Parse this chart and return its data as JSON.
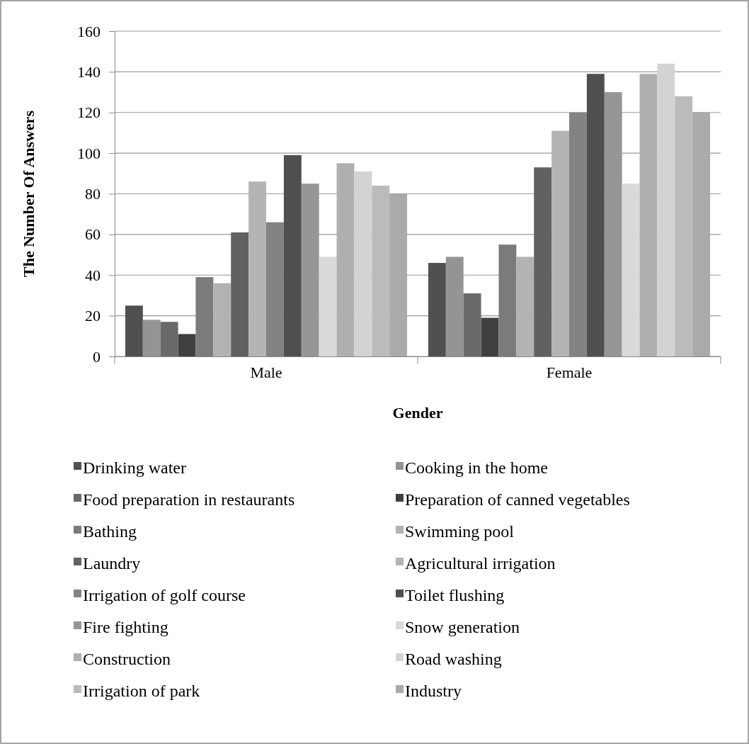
{
  "chart_data": {
    "type": "bar",
    "xlabel": "Gender",
    "ylabel": "The Number Of Answers",
    "categories": [
      "Male",
      "Female"
    ],
    "ylim": [
      0,
      160
    ],
    "yticks": [
      0,
      20,
      40,
      60,
      80,
      100,
      120,
      140,
      160
    ],
    "grid": "y",
    "legend": "bottom",
    "series": [
      {
        "name": "Drinking water",
        "color": "#505050",
        "values": [
          25,
          46
        ]
      },
      {
        "name": "Cooking in the home",
        "color": "#949494",
        "values": [
          18,
          49
        ]
      },
      {
        "name": "Food preparation in restaurants",
        "color": "#696969",
        "values": [
          17,
          31
        ]
      },
      {
        "name": "Preparation of canned vegetables",
        "color": "#404040",
        "values": [
          11,
          19
        ]
      },
      {
        "name": "Bathing",
        "color": "#7b7b7b",
        "values": [
          39,
          55
        ]
      },
      {
        "name": "Swimming pool",
        "color": "#b3b3b3",
        "values": [
          36,
          49
        ]
      },
      {
        "name": "Laundry",
        "color": "#616161",
        "values": [
          61,
          93
        ]
      },
      {
        "name": "Agricultural irrigation",
        "color": "#b4b4b4",
        "values": [
          86,
          111
        ]
      },
      {
        "name": "Irrigation of golf course",
        "color": "#838383",
        "values": [
          66,
          120
        ]
      },
      {
        "name": "Toilet flushing",
        "color": "#4f4f4f",
        "values": [
          99,
          139
        ]
      },
      {
        "name": "Fire fighting",
        "color": "#969696",
        "values": [
          85,
          130
        ]
      },
      {
        "name": "Snow generation",
        "color": "#d9d9d9",
        "values": [
          49,
          85
        ]
      },
      {
        "name": "Construction",
        "color": "#afafaf",
        "values": [
          95,
          139
        ]
      },
      {
        "name": "Road washing",
        "color": "#d3d3d3",
        "values": [
          91,
          144
        ]
      },
      {
        "name": "Irrigation of park",
        "color": "#bbbbbb",
        "values": [
          84,
          128
        ]
      },
      {
        "name": "Industry",
        "color": "#aaaaaa",
        "values": [
          80,
          120
        ]
      }
    ]
  }
}
